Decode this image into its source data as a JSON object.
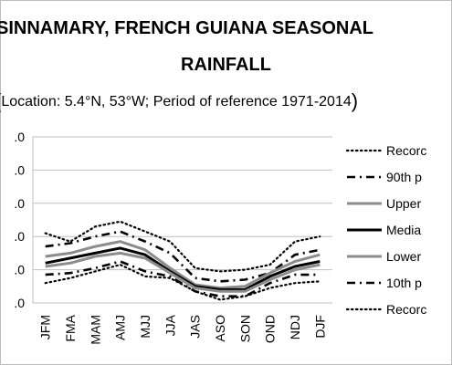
{
  "chart_data": {
    "type": "line",
    "title_line1": "SINNAMARY, FRENCH GUIANA SEASONAL",
    "title_line2": "RAINFALL",
    "subtitle_open": "(",
    "subtitle_text": "Location: 5.4°N, 53°W; Period of reference 1971-2014",
    "subtitle_close": ")",
    "categories": [
      "JFM",
      "FMA",
      "MAM",
      "AMJ",
      "MJJ",
      "JJA",
      "JAS",
      "ASO",
      "SON",
      "OND",
      "NDJ",
      "DJF"
    ],
    "y_tick_labels": [
      ".0",
      ".0",
      ".0",
      ".0",
      ".0",
      ".0"
    ],
    "ylim": [
      0,
      5
    ],
    "grid": true,
    "legend_position": "right",
    "series": [
      {
        "name": "Recorc",
        "style": "dotted",
        "color": "#000000",
        "values": [
          2.1,
          1.85,
          2.3,
          2.45,
          2.15,
          1.85,
          1.05,
          0.95,
          1.0,
          1.15,
          1.85,
          2.0
        ]
      },
      {
        "name": "90th p",
        "style": "dashdot",
        "color": "#000000",
        "values": [
          1.7,
          1.8,
          2.0,
          2.15,
          1.85,
          1.5,
          0.75,
          0.65,
          0.7,
          0.9,
          1.45,
          1.6
        ]
      },
      {
        "name": "Upper",
        "style": "solid-grey",
        "color": "#8c8c8c",
        "values": [
          1.4,
          1.5,
          1.7,
          1.85,
          1.6,
          1.05,
          0.55,
          0.45,
          0.5,
          0.9,
          1.25,
          1.45
        ]
      },
      {
        "name": "Media",
        "style": "solid-black",
        "color": "#000000",
        "values": [
          1.2,
          1.35,
          1.5,
          1.65,
          1.45,
          0.95,
          0.5,
          0.4,
          0.4,
          0.8,
          1.1,
          1.25
        ]
      },
      {
        "name": "Lower",
        "style": "solid-grey",
        "color": "#8c8c8c",
        "values": [
          1.1,
          1.2,
          1.4,
          1.5,
          1.35,
          0.9,
          0.45,
          0.35,
          0.35,
          0.7,
          1.0,
          1.15
        ]
      },
      {
        "name": "10th p",
        "style": "dashdot",
        "color": "#000000",
        "values": [
          0.85,
          0.9,
          1.05,
          1.25,
          0.95,
          0.8,
          0.35,
          0.2,
          0.2,
          0.6,
          0.85,
          0.85
        ]
      },
      {
        "name": "Recorc",
        "style": "dotted",
        "color": "#000000",
        "values": [
          0.6,
          0.75,
          0.95,
          1.15,
          0.8,
          0.75,
          0.35,
          0.1,
          0.2,
          0.45,
          0.6,
          0.65
        ]
      }
    ]
  }
}
